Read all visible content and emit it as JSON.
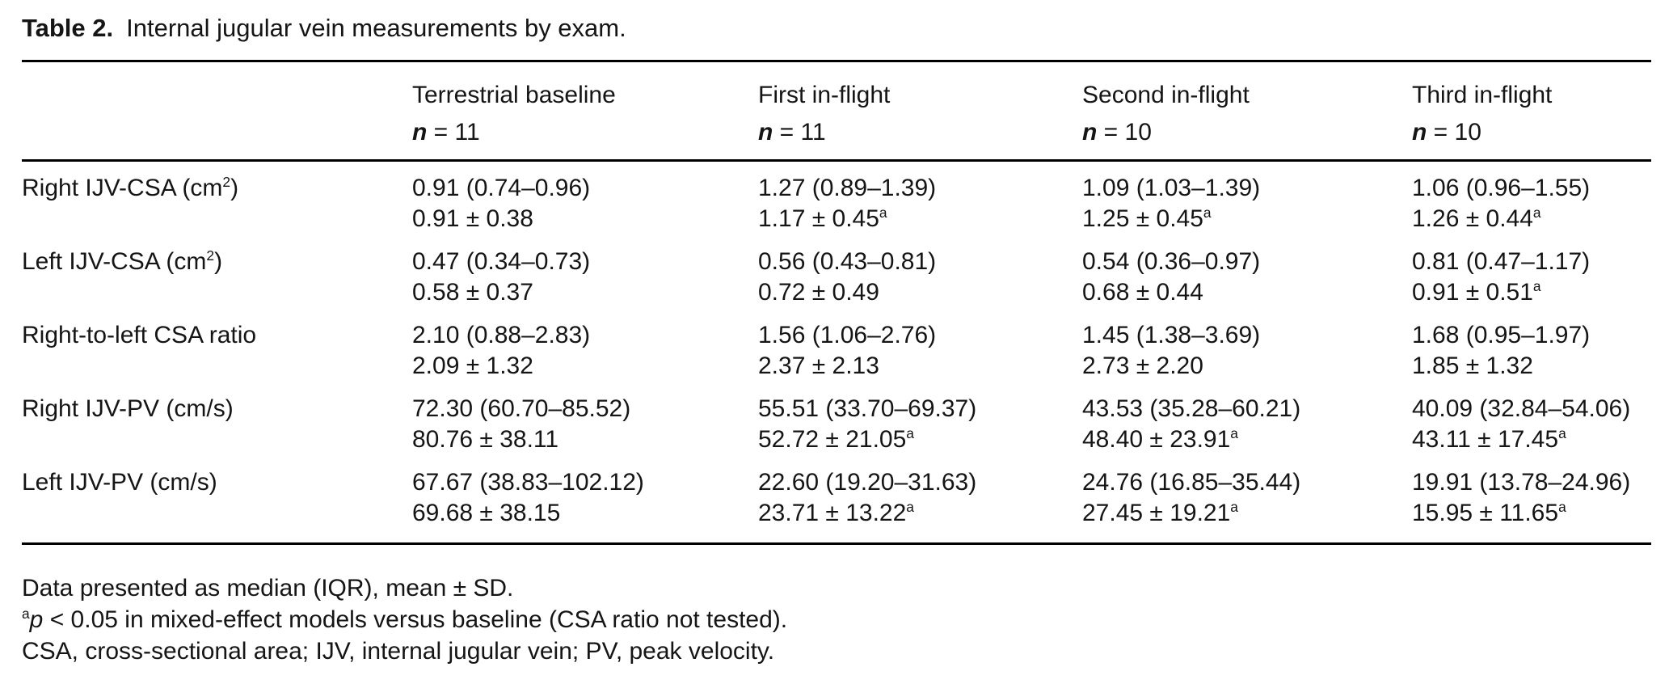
{
  "caption": {
    "label": "Table 2.",
    "text": "Internal jugular vein measurements by exam."
  },
  "table": {
    "columns": [
      {
        "label": "Terrestrial baseline",
        "n_symbol": "n",
        "n_value": "= 11"
      },
      {
        "label": "First in-flight",
        "n_symbol": "n",
        "n_value": "= 11"
      },
      {
        "label": "Second in-flight",
        "n_symbol": "n",
        "n_value": "= 10"
      },
      {
        "label": "Third in-flight",
        "n_symbol": "n",
        "n_value": "= 10"
      }
    ],
    "rows": [
      {
        "label": "Right IJV-CSA (cm^2)",
        "cells": [
          {
            "median": "0.91 (0.74–0.96)",
            "mean": "0.91 ± 0.38"
          },
          {
            "median": "1.27 (0.89–1.39)",
            "mean": "1.17 ± 0.45^a"
          },
          {
            "median": "1.09 (1.03–1.39)",
            "mean": "1.25 ± 0.45^a"
          },
          {
            "median": "1.06 (0.96–1.55)",
            "mean": "1.26 ± 0.44^a"
          }
        ]
      },
      {
        "label": "Left IJV-CSA (cm^2)",
        "cells": [
          {
            "median": "0.47 (0.34–0.73)",
            "mean": "0.58 ± 0.37"
          },
          {
            "median": "0.56 (0.43–0.81)",
            "mean": "0.72 ± 0.49"
          },
          {
            "median": "0.54 (0.36–0.97)",
            "mean": "0.68 ± 0.44"
          },
          {
            "median": "0.81 (0.47–1.17)",
            "mean": "0.91 ± 0.51^a"
          }
        ]
      },
      {
        "label": "Right-to-left CSA ratio",
        "cells": [
          {
            "median": "2.10 (0.88–2.83)",
            "mean": "2.09 ± 1.32"
          },
          {
            "median": "1.56 (1.06–2.76)",
            "mean": "2.37 ± 2.13"
          },
          {
            "median": "1.45 (1.38–3.69)",
            "mean": "2.73 ± 2.20"
          },
          {
            "median": "1.68 (0.95–1.97)",
            "mean": "1.85 ± 1.32"
          }
        ]
      },
      {
        "label": "Right IJV-PV (cm/s)",
        "cells": [
          {
            "median": "72.30 (60.70–85.52)",
            "mean": "80.76 ± 38.11"
          },
          {
            "median": "55.51 (33.70–69.37)",
            "mean": "52.72 ± 21.05^a"
          },
          {
            "median": "43.53 (35.28–60.21)",
            "mean": "48.40 ± 23.91^a"
          },
          {
            "median": "40.09 (32.84–54.06)",
            "mean": "43.11 ± 17.45^a"
          }
        ]
      },
      {
        "label": "Left IJV-PV (cm/s)",
        "cells": [
          {
            "median": "67.67 (38.83–102.12)",
            "mean": "69.68 ± 38.15"
          },
          {
            "median": "22.60 (19.20–31.63)",
            "mean": "23.71 ± 13.22^a"
          },
          {
            "median": "24.76 (16.85–35.44)",
            "mean": "27.45 ± 19.21^a"
          },
          {
            "median": "19.91 (13.78–24.96)",
            "mean": "15.95 ± 11.65^a"
          }
        ]
      }
    ]
  },
  "footnotes": {
    "line1": "Data presented as median (IQR), mean ± SD.",
    "line2": {
      "sup": "a",
      "italic": "p",
      "text": " < 0.05 in mixed-effect models versus baseline (CSA ratio not tested)."
    },
    "line3": "CSA, cross-sectional area; IJV, internal jugular vein; PV, peak velocity."
  }
}
